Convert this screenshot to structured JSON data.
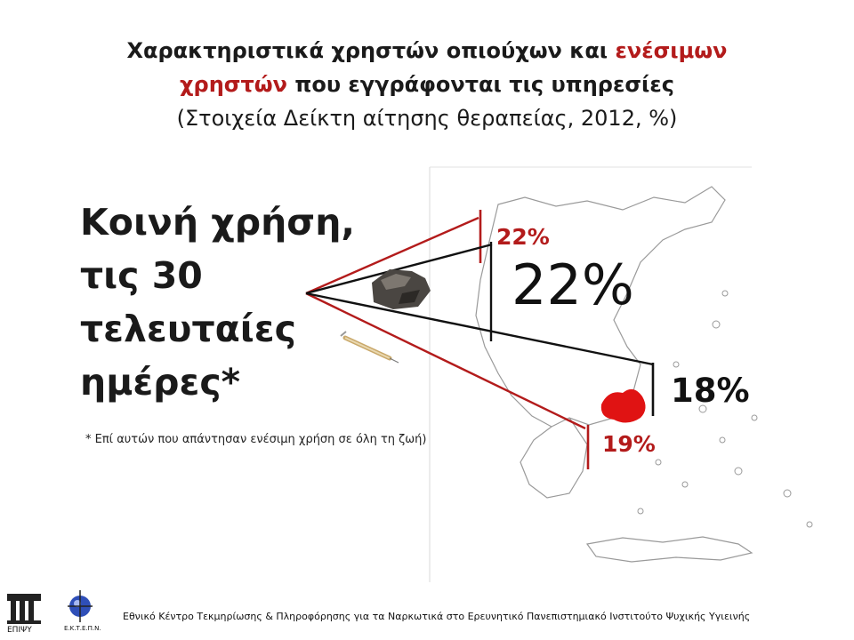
{
  "title": {
    "line1_black": "Χαρακτηριστικά χρηστών οπιούχων και ",
    "line1_red": "ενέσιμων",
    "line2_red": "χρηστών",
    "line2_black": " που εγγράφονται τις υπηρεσίες",
    "line3": "(Στοιχεία Δείκτη αίτησης θεραπείας, 2012, %)"
  },
  "heading": [
    "Κοινή χρήση,",
    "τις 30",
    "τελευταίες",
    "ημέρες*"
  ],
  "footnote": "*  Επί αυτών που απάντησαν ενέσιμη χρήση σε όλη τη ζωή)",
  "labels": {
    "red_top": "22%",
    "big_black": "22%",
    "black_right": "18%",
    "red_bottom": "19%"
  },
  "footer": "Εθνικό Κέντρο Τεκμηρίωσης & Πληροφόρησης για τα Ναρκωτικά στο Ερευνητικό Πανεπιστημιακό Ινστιτούτο Ψυχικής Υγιεινής",
  "logos": {
    "left": "ΕΠΙΨΥ",
    "right": "Ε.Κ.Τ.Ε.Π.Ν."
  },
  "icons": [
    "greece-map",
    "heroin-rock-icon",
    "syringe-icon",
    "attica-region-marker"
  ],
  "colors": {
    "red": "#b31b1b",
    "black": "#111111",
    "map_stroke": "#9a9a9a"
  }
}
